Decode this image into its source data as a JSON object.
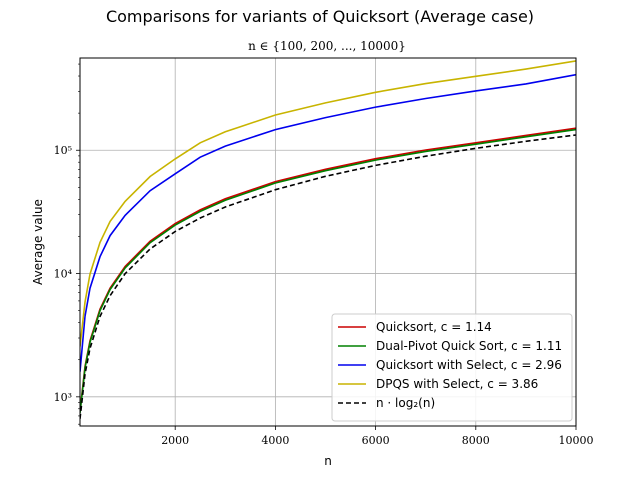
{
  "chart_data": {
    "type": "line",
    "title": "Comparisons for variants of Quicksort (Average case)",
    "subtitle": "n ∈ {100, 200, ..., 10000}",
    "xlabel": "n",
    "ylabel": "Average value",
    "yscale": "log",
    "xlim": [
      100,
      10000
    ],
    "ylim": [
      580,
      560000
    ],
    "grid": true,
    "legend_position": "lower-right",
    "x_ticks": [
      2000,
      4000,
      6000,
      8000,
      10000
    ],
    "x_tick_labels": [
      "2000",
      "4000",
      "6000",
      "8000",
      "10000"
    ],
    "y_ticks": [
      1000,
      10000,
      100000
    ],
    "y_tick_labels": [
      "10³",
      "10⁴",
      "10⁵"
    ],
    "x": [
      100,
      200,
      300,
      500,
      700,
      1000,
      1500,
      2000,
      2500,
      3000,
      4000,
      5000,
      6000,
      7000,
      8000,
      9000,
      10000
    ],
    "series": [
      {
        "name": "Quicksort, c = 1.14",
        "color": "#cc0000",
        "dashed": false,
        "values": [
          760,
          1760,
          2850,
          5140,
          7620,
          11400,
          18300,
          25400,
          32800,
          40400,
          55700,
          70000,
          85400,
          100500,
          115000,
          132000,
          151000
        ]
      },
      {
        "name": "Dual-Pivot Quick Sort, c = 1.11",
        "color": "#008000",
        "dashed": false,
        "values": [
          740,
          1710,
          2770,
          5000,
          7420,
          11100,
          17800,
          24700,
          31900,
          39300,
          54200,
          68200,
          83200,
          97900,
          112000,
          128500,
          147000
        ]
      },
      {
        "name": "Quicksort with Select, c = 2.96",
        "color": "#0000ee",
        "dashed": false,
        "values": [
          1600,
          4500,
          7600,
          13700,
          20300,
          29600,
          47000,
          64400,
          87800,
          108000,
          147000,
          184000,
          224000,
          263000,
          303000,
          345000,
          410000
        ]
      },
      {
        "name": "DPQS with Select, c = 3.86",
        "color": "#c8b400",
        "dashed": false,
        "values": [
          2560,
          5870,
          9900,
          17900,
          26500,
          38500,
          61300,
          85000,
          115000,
          141000,
          193000,
          242000,
          295000,
          347000,
          398000,
          455000,
          530000
        ]
      },
      {
        "name": "n · log₂(n)",
        "color": "#000000",
        "dashed": true,
        "values": [
          664,
          1529,
          2469,
          4483,
          6617,
          9966,
          15827,
          21932,
          28222,
          34652,
          47863,
          61439,
          75304,
          89412,
          103726,
          118224,
          132877
        ]
      }
    ]
  }
}
